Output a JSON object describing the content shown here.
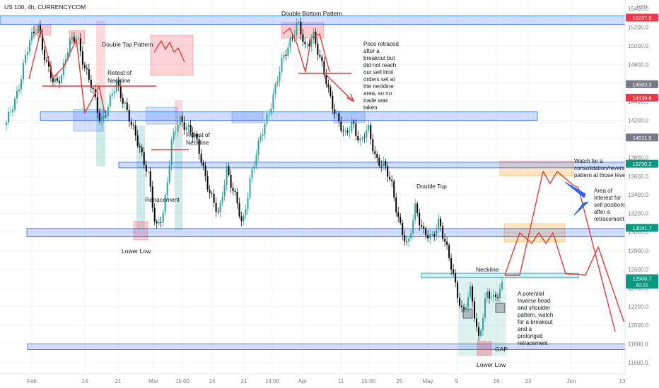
{
  "header": {
    "symbol_title": "US 100, 4h, CURRENCYCOM"
  },
  "colors": {
    "zone_fill": "#2962ff",
    "trend": "#e53935",
    "up_candle": "#26a69a",
    "down_candle": "#000000",
    "interest_fill": "#ffb74d",
    "neckline_fill": "#4dd0e1"
  },
  "chart_data": {
    "type": "candlestick",
    "title": "US 100, 4h, CURRENCYCOM",
    "y_unit": "USD",
    "ylim": [
      11500,
      15500
    ],
    "ytick_labels": [
      "15400.0",
      "15200.0",
      "15000.0",
      "14800.0",
      "14600.0",
      "14400.0",
      "14200.0",
      "14000.0",
      "13800.0",
      "13600.0",
      "13400.0",
      "13200.0",
      "13000.0",
      "12800.0",
      "12600.0",
      "12400.0",
      "12200.0",
      "12000.0",
      "11800.0",
      "11600.0"
    ],
    "ytick_values": [
      15400,
      15200,
      15000,
      14800,
      14600,
      14400,
      14200,
      14000,
      13800,
      13600,
      13400,
      13200,
      13000,
      12800,
      12600,
      12400,
      12200,
      12000,
      11800,
      11600
    ],
    "xtick_labels": [
      "Feb",
      "14",
      "21",
      "Mar",
      "15:00",
      "14",
      "21",
      "14:00",
      "Apr",
      "11",
      "15:00",
      "25",
      "May",
      "9",
      "16",
      "23",
      "Jun",
      "13"
    ],
    "price_tags": [
      {
        "label": "15297.5",
        "value": 15297.5,
        "color": "#f23645"
      },
      {
        "label": "14583.3",
        "value": 14583.3,
        "color": "#787b86"
      },
      {
        "label": "14439.6",
        "value": 14439.6,
        "color": "#f23645"
      },
      {
        "label": "14011.9",
        "value": 14011.9,
        "color": "#787b86"
      },
      {
        "label": "13730.2",
        "value": 13730.2,
        "color": "#089981"
      },
      {
        "label": "13041.7",
        "value": 13041.7,
        "color": "#089981"
      },
      {
        "label": "12500.7",
        "value": 12500.7,
        "color": "#089981",
        "sub": "40:21"
      }
    ],
    "horizontal_zones": [
      {
        "name": "top-resistance",
        "from": 15230,
        "to": 15320
      },
      {
        "name": "mid-support-1",
        "from": 14200,
        "to": 14290
      },
      {
        "name": "mid-support-2",
        "from": 13690,
        "to": 13750
      },
      {
        "name": "support-lower-low",
        "from": 12950,
        "to": 13040
      },
      {
        "name": "neckline-zone",
        "from": 12510,
        "to": 12560
      },
      {
        "name": "bottom-support",
        "from": 11740,
        "to": 11800
      }
    ],
    "close_path": [
      [
        0,
        14150
      ],
      [
        3,
        14550
      ],
      [
        6,
        15050
      ],
      [
        8,
        15250
      ],
      [
        10,
        14800
      ],
      [
        12,
        14600
      ],
      [
        14,
        14700
      ],
      [
        16,
        15000
      ],
      [
        18,
        15120
      ],
      [
        20,
        14750
      ],
      [
        22,
        14500
      ],
      [
        24,
        14200
      ],
      [
        26,
        14350
      ],
      [
        28,
        14600
      ],
      [
        30,
        14400
      ],
      [
        32,
        14100
      ],
      [
        34,
        13900
      ],
      [
        36,
        13650
      ],
      [
        38,
        13000
      ],
      [
        40,
        13250
      ],
      [
        42,
        13950
      ],
      [
        44,
        14200
      ],
      [
        46,
        14150
      ],
      [
        48,
        14000
      ],
      [
        50,
        13700
      ],
      [
        52,
        13400
      ],
      [
        54,
        13150
      ],
      [
        56,
        13700
      ],
      [
        58,
        13400
      ],
      [
        60,
        13050
      ],
      [
        62,
        13600
      ],
      [
        64,
        13900
      ],
      [
        66,
        14200
      ],
      [
        68,
        14500
      ],
      [
        70,
        14800
      ],
      [
        72,
        15050
      ],
      [
        74,
        15250
      ],
      [
        76,
        14950
      ],
      [
        78,
        15150
      ],
      [
        80,
        14800
      ],
      [
        82,
        14500
      ],
      [
        84,
        14250
      ],
      [
        86,
        14000
      ],
      [
        88,
        14200
      ],
      [
        90,
        13950
      ],
      [
        92,
        14100
      ],
      [
        94,
        13800
      ],
      [
        96,
        13700
      ],
      [
        98,
        13500
      ],
      [
        100,
        13100
      ],
      [
        102,
        12800
      ],
      [
        104,
        13300
      ],
      [
        106,
        13000
      ],
      [
        108,
        12900
      ],
      [
        110,
        13150
      ],
      [
        112,
        12800
      ],
      [
        114,
        12450
      ],
      [
        116,
        12150
      ],
      [
        118,
        12350
      ],
      [
        120,
        11850
      ],
      [
        122,
        12350
      ],
      [
        124,
        12250
      ],
      [
        126,
        12450
      ]
    ]
  },
  "annotations": {
    "double_bottom_pattern": "Double Bottom Pattern",
    "double_top_pattern": "Double Top Pattern",
    "retest_neckline_1": [
      "Retest of",
      "Neckline"
    ],
    "retest_neckline_2": [
      "Retest of",
      "Neckline"
    ],
    "retracement": "Retracement",
    "lower_low_1": "Lower Low",
    "lower_low_2": "Lower Low",
    "gap": "GAP",
    "neckline": "Neckline",
    "double_top_2": "Double Top",
    "price_retraced": [
      "Price retraced",
      "after a",
      "breakout but",
      "did not reach",
      "our sell limit",
      "orders set at",
      "the neckline",
      "area, so no",
      "trade was",
      "taken"
    ],
    "watch_consolidation": [
      "Watch for a",
      "consolidation/reversal",
      "pattern at those levels"
    ],
    "area_of_interest": [
      "Area of",
      "Interest for",
      "sell positions",
      "after a",
      "retracement"
    ],
    "inverse_hs": [
      "A potential",
      "Inverse head",
      "and shoulder",
      "pattern, watch",
      "for a breakout",
      "and a",
      "prolonged",
      "retracement"
    ]
  }
}
